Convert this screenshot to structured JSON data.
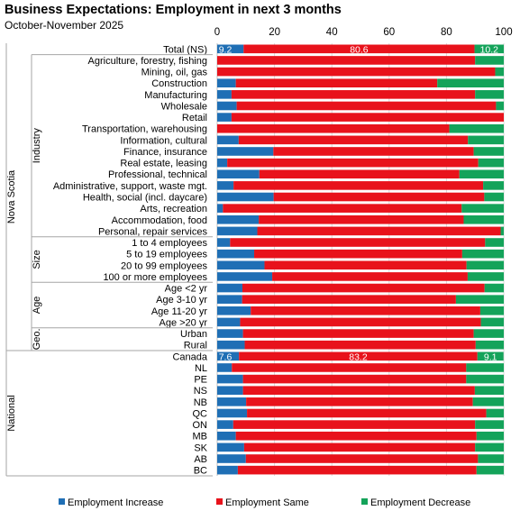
{
  "title": "Business Expectations: Employment in next 3 months",
  "subtitle": "October-November 2025",
  "chart_data": {
    "type": "bar",
    "orientation": "horizontal",
    "stacked": true,
    "xlim": [
      0,
      100
    ],
    "x_ticks": [
      "0",
      "20",
      "40",
      "60",
      "80",
      "100"
    ],
    "legend_position": "bottom",
    "grid": true,
    "colors": {
      "Employment Increase": "#1f6fb5",
      "Employment Same": "#e8121b",
      "Employment Decrease": "#14a35a"
    },
    "series_names": [
      "Employment Increase",
      "Employment Same",
      "Employment Decrease"
    ],
    "groups": [
      {
        "label": "Nova Scotia",
        "subgroups": [
          {
            "label": "",
            "rows": [
              "Total (NS)"
            ]
          },
          {
            "label": "Industry",
            "rows": [
              "Agriculture, forestry, fishing",
              "Mining, oil, gas",
              "Construction",
              "Manufacturing",
              "Wholesale",
              "Retail",
              "Transportation, warehousing",
              "Information, cultural",
              "Finance, insurance",
              "Real estate, leasing",
              "Professional, technical",
              "Administrative, support, waste mgt.",
              "Health, social (incl. daycare)",
              "Arts, recreation",
              "Accommodation, food",
              "Personal, repair services"
            ]
          },
          {
            "label": "Size",
            "rows": [
              "1 to 4 employees",
              "5 to 19 employees",
              "20 to 99 employees",
              "100 or more employees"
            ]
          },
          {
            "label": "Age",
            "rows": [
              "Age <2 yr",
              "Age 3-10 yr",
              "Age 11-20 yr",
              "Age >20 yr"
            ]
          },
          {
            "label": "Geo.",
            "rows": [
              "Urban",
              "Rural"
            ]
          }
        ]
      },
      {
        "label": "National",
        "subgroups": [
          {
            "label": "",
            "rows": [
              "Canada",
              "NL",
              "PE",
              "NS",
              "NB",
              "QC",
              "ON",
              "MB",
              "SK",
              "AB",
              "BC"
            ]
          }
        ]
      }
    ],
    "categories": [
      "Total (NS)",
      "Agriculture, forestry, fishing",
      "Mining, oil, gas",
      "Construction",
      "Manufacturing",
      "Wholesale",
      "Retail",
      "Transportation, warehousing",
      "Information, cultural",
      "Finance, insurance",
      "Real estate, leasing",
      "Professional, technical",
      "Administrative, support, waste mgt.",
      "Health, social (incl. daycare)",
      "Arts, recreation",
      "Accommodation, food",
      "Personal, repair services",
      "1 to 4 employees",
      "5 to 19 employees",
      "20 to 99 employees",
      "100 or more employees",
      "Age <2 yr",
      "Age 3-10 yr",
      "Age 11-20 yr",
      "Age >20 yr",
      "Urban",
      "Rural",
      "Canada",
      "NL",
      "PE",
      "NS",
      "NB",
      "QC",
      "ON",
      "MB",
      "SK",
      "AB",
      "BC"
    ],
    "series": [
      {
        "name": "Employment Increase",
        "values": [
          9.2,
          0,
          0,
          6.5,
          5.0,
          6.8,
          5.0,
          0,
          7.5,
          19.6,
          3.5,
          14.7,
          5.7,
          19.7,
          2.0,
          14.5,
          14.0,
          4.5,
          12.9,
          16.5,
          19.2,
          8.8,
          8.7,
          11.7,
          8.0,
          9.0,
          9.6,
          7.6,
          5.1,
          9.0,
          9.0,
          10.1,
          10.4,
          5.6,
          6.5,
          9.4,
          10.0,
          7.2
        ]
      },
      {
        "name": "Employment Same",
        "values": [
          80.6,
          90.0,
          97.0,
          70.3,
          85.0,
          90.5,
          95.0,
          81.0,
          80.0,
          69.9,
          87.6,
          69.8,
          87.1,
          73.5,
          83.3,
          71.5,
          84.9,
          89.0,
          72.6,
          70.5,
          68.2,
          84.5,
          74.6,
          80.1,
          84.0,
          80.5,
          80.6,
          83.2,
          81.8,
          77.9,
          80.9,
          79.1,
          83.5,
          84.4,
          84.0,
          80.6,
          81.0,
          83.3
        ]
      },
      {
        "name": "Employment Decrease",
        "values": [
          10.2,
          10.0,
          3.0,
          23.2,
          10.0,
          2.7,
          0,
          19.0,
          12.5,
          10.5,
          8.9,
          15.5,
          7.2,
          6.8,
          14.7,
          14.0,
          1.1,
          6.5,
          14.5,
          13.0,
          12.6,
          6.7,
          16.7,
          8.2,
          8.0,
          10.5,
          9.8,
          9.1,
          13.1,
          13.1,
          10.1,
          10.8,
          6.1,
          10.0,
          9.5,
          10.0,
          9.0,
          9.5
        ]
      }
    ],
    "data_labels": [
      {
        "row": "Total (NS)",
        "values": [
          "9.2",
          "80.6",
          "10.2"
        ]
      },
      {
        "row": "Canada",
        "values": [
          "7.6",
          "83.2",
          "9.1"
        ]
      }
    ]
  }
}
